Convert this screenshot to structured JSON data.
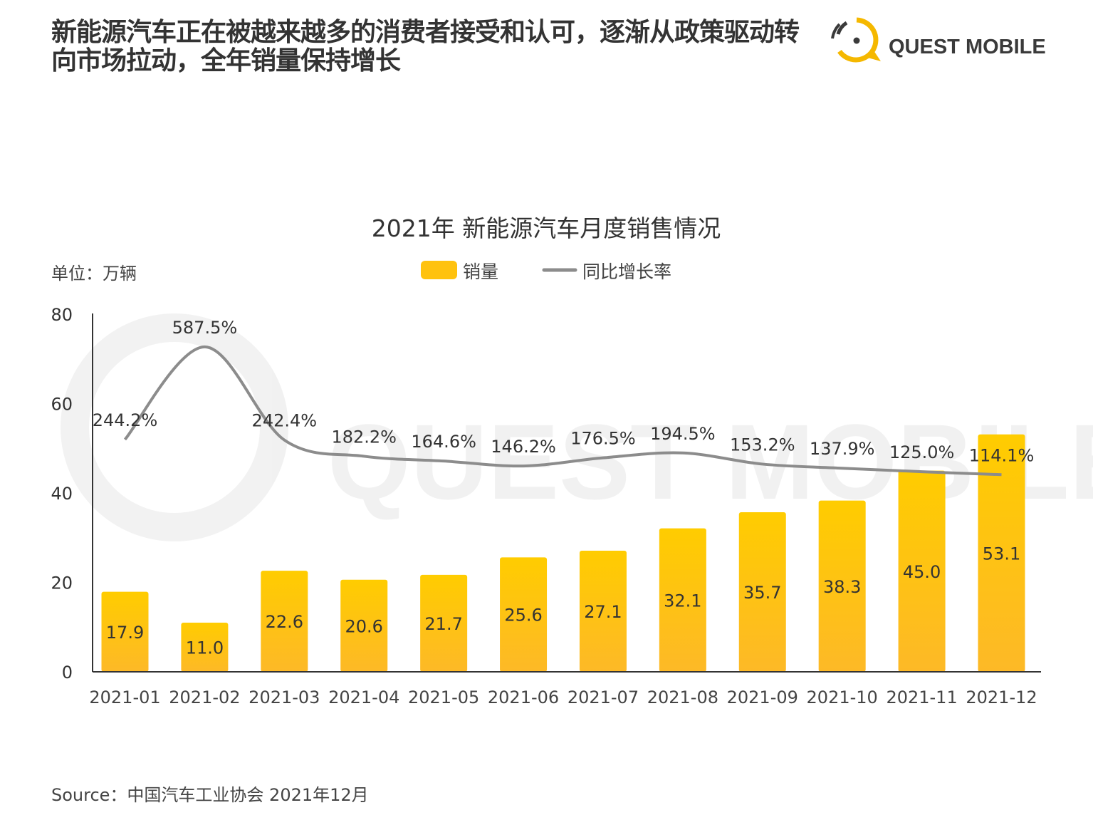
{
  "headline": "新能源汽车正在被越来越多的消费者接受和认可，逐渐从政策驱动转向市场拉动，全年销量保持增长",
  "logo": {
    "text": "QUEST MOBILE",
    "accent": "#F5B800"
  },
  "source": "Source：中国汽车工业协会 2021年12月",
  "chart_data": {
    "type": "bar",
    "title": "2021年 新能源汽车月度销售情况",
    "unit_label": "单位：万辆",
    "categories": [
      "2021-01",
      "2021-02",
      "2021-03",
      "2021-04",
      "2021-05",
      "2021-06",
      "2021-07",
      "2021-08",
      "2021-09",
      "2021-10",
      "2021-11",
      "2021-12"
    ],
    "series": [
      {
        "name": "销量",
        "kind": "bar",
        "color": "#FFC20E",
        "values": [
          17.9,
          11.0,
          22.6,
          20.6,
          21.7,
          25.6,
          27.1,
          32.1,
          35.7,
          38.3,
          45.0,
          53.1
        ],
        "labels": [
          "17.9",
          "11.0",
          "22.6",
          "20.6",
          "21.7",
          "25.6",
          "27.1",
          "32.1",
          "35.7",
          "38.3",
          "45.0",
          "53.1"
        ]
      },
      {
        "name": "同比增长率",
        "kind": "line",
        "smooth": true,
        "secondary_axis": true,
        "color": "#8C8C8C",
        "values": [
          244.2,
          587.5,
          242.4,
          182.2,
          164.6,
          146.2,
          176.5,
          194.5,
          153.2,
          137.9,
          125.0,
          114.1
        ],
        "labels": [
          "244.2%",
          "587.5%",
          "242.4%",
          "182.2%",
          "164.6%",
          "146.2%",
          "176.5%",
          "194.5%",
          "153.2%",
          "137.9%",
          "125.0%",
          "114.1%"
        ]
      }
    ],
    "ylim": [
      0,
      80
    ],
    "yticks": [
      "0",
      "20",
      "40",
      "60",
      "80"
    ],
    "secondary_axis_visible": false,
    "legend": "top-center",
    "grid": false
  }
}
